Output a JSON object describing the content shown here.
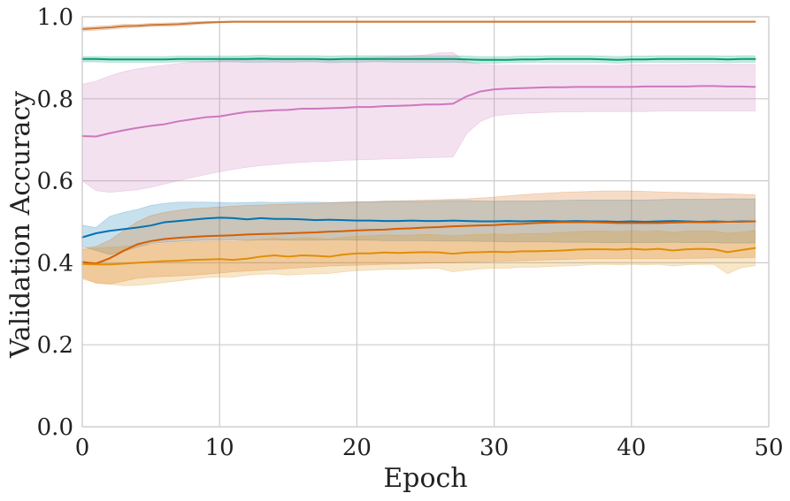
{
  "chart_data": {
    "type": "line",
    "xlabel": "Epoch",
    "ylabel": "Validation Accuracy",
    "xlim": [
      0,
      50
    ],
    "ylim": [
      0,
      1.0
    ],
    "xticks": [
      0,
      10,
      20,
      30,
      40,
      50
    ],
    "xtick_labels": [
      "0",
      "10",
      "20",
      "30",
      "40",
      "50"
    ],
    "yticks": [
      0,
      0.2,
      0.4,
      0.6,
      0.8,
      1.0
    ],
    "ytick_labels": [
      "0.0",
      "0.2",
      "0.4",
      "0.6",
      "0.8",
      "1.0"
    ],
    "grid": true,
    "x": [
      0,
      1,
      2,
      3,
      4,
      5,
      6,
      7,
      8,
      9,
      10,
      11,
      12,
      13,
      14,
      15,
      16,
      17,
      18,
      19,
      20,
      21,
      22,
      23,
      24,
      25,
      26,
      27,
      28,
      29,
      30,
      31,
      32,
      33,
      34,
      35,
      36,
      37,
      38,
      39,
      40,
      41,
      42,
      43,
      44,
      45,
      46,
      47,
      48,
      49
    ],
    "series": [
      {
        "color": "#cc7a3a",
        "values": [
          0.97,
          0.972,
          0.974,
          0.977,
          0.978,
          0.98,
          0.981,
          0.982,
          0.984,
          0.986,
          0.987,
          0.988,
          0.988,
          0.988,
          0.988,
          0.988,
          0.988,
          0.988,
          0.988,
          0.988,
          0.988,
          0.988,
          0.988,
          0.988,
          0.988,
          0.988,
          0.988,
          0.988,
          0.988,
          0.988,
          0.988,
          0.988,
          0.988,
          0.988,
          0.988,
          0.988,
          0.988,
          0.988,
          0.988,
          0.988,
          0.988,
          0.988,
          0.988,
          0.988,
          0.988,
          0.988,
          0.988,
          0.988,
          0.988,
          0.988
        ],
        "lower": [
          0.965,
          0.967,
          0.969,
          0.972,
          0.974,
          0.976,
          0.977,
          0.978,
          0.98,
          0.983,
          0.985,
          0.986,
          0.986,
          0.986,
          0.986,
          0.986,
          0.986,
          0.986,
          0.986,
          0.986,
          0.986,
          0.986,
          0.986,
          0.986,
          0.986,
          0.986,
          0.986,
          0.986,
          0.986,
          0.986,
          0.986,
          0.986,
          0.986,
          0.986,
          0.986,
          0.986,
          0.986,
          0.986,
          0.986,
          0.986,
          0.986,
          0.986,
          0.986,
          0.986,
          0.986,
          0.986,
          0.986,
          0.986,
          0.986,
          0.986
        ],
        "upper": [
          0.975,
          0.977,
          0.979,
          0.982,
          0.982,
          0.984,
          0.985,
          0.986,
          0.988,
          0.989,
          0.989,
          0.99,
          0.99,
          0.99,
          0.99,
          0.99,
          0.99,
          0.99,
          0.99,
          0.99,
          0.99,
          0.99,
          0.99,
          0.99,
          0.99,
          0.99,
          0.99,
          0.99,
          0.99,
          0.99,
          0.99,
          0.99,
          0.99,
          0.99,
          0.99,
          0.99,
          0.99,
          0.99,
          0.99,
          0.99,
          0.99,
          0.99,
          0.99,
          0.99,
          0.99,
          0.99,
          0.99,
          0.99,
          0.99,
          0.99
        ]
      },
      {
        "color": "#029e73",
        "values": [
          0.897,
          0.897,
          0.896,
          0.896,
          0.896,
          0.896,
          0.896,
          0.897,
          0.897,
          0.897,
          0.897,
          0.897,
          0.897,
          0.898,
          0.897,
          0.897,
          0.897,
          0.897,
          0.896,
          0.897,
          0.897,
          0.897,
          0.897,
          0.897,
          0.897,
          0.897,
          0.897,
          0.897,
          0.896,
          0.895,
          0.895,
          0.895,
          0.896,
          0.896,
          0.897,
          0.897,
          0.897,
          0.897,
          0.896,
          0.895,
          0.896,
          0.896,
          0.897,
          0.897,
          0.897,
          0.897,
          0.897,
          0.896,
          0.897,
          0.897
        ],
        "lower": [
          0.89,
          0.89,
          0.889,
          0.889,
          0.889,
          0.889,
          0.889,
          0.89,
          0.89,
          0.89,
          0.89,
          0.89,
          0.889,
          0.889,
          0.89,
          0.889,
          0.89,
          0.89,
          0.888,
          0.889,
          0.889,
          0.89,
          0.89,
          0.889,
          0.889,
          0.889,
          0.889,
          0.889,
          0.888,
          0.887,
          0.887,
          0.888,
          0.888,
          0.889,
          0.889,
          0.889,
          0.889,
          0.889,
          0.888,
          0.887,
          0.888,
          0.889,
          0.889,
          0.889,
          0.889,
          0.889,
          0.889,
          0.888,
          0.889,
          0.889
        ],
        "upper": [
          0.903,
          0.903,
          0.903,
          0.903,
          0.903,
          0.903,
          0.903,
          0.904,
          0.904,
          0.904,
          0.904,
          0.904,
          0.905,
          0.906,
          0.905,
          0.905,
          0.905,
          0.905,
          0.904,
          0.905,
          0.905,
          0.905,
          0.905,
          0.905,
          0.905,
          0.905,
          0.905,
          0.905,
          0.904,
          0.903,
          0.903,
          0.903,
          0.904,
          0.904,
          0.905,
          0.905,
          0.905,
          0.905,
          0.904,
          0.903,
          0.904,
          0.904,
          0.905,
          0.905,
          0.905,
          0.905,
          0.905,
          0.904,
          0.905,
          0.905
        ]
      },
      {
        "color": "#cc78bc",
        "values": [
          0.709,
          0.708,
          0.716,
          0.723,
          0.729,
          0.734,
          0.738,
          0.745,
          0.75,
          0.755,
          0.757,
          0.763,
          0.768,
          0.77,
          0.772,
          0.773,
          0.776,
          0.776,
          0.777,
          0.778,
          0.78,
          0.78,
          0.782,
          0.783,
          0.784,
          0.786,
          0.786,
          0.788,
          0.806,
          0.818,
          0.823,
          0.825,
          0.826,
          0.827,
          0.828,
          0.828,
          0.829,
          0.829,
          0.829,
          0.829,
          0.829,
          0.83,
          0.83,
          0.83,
          0.83,
          0.831,
          0.831,
          0.83,
          0.83,
          0.829
        ],
        "lower": [
          0.6,
          0.576,
          0.572,
          0.575,
          0.578,
          0.584,
          0.592,
          0.6,
          0.608,
          0.615,
          0.622,
          0.628,
          0.633,
          0.637,
          0.64,
          0.643,
          0.645,
          0.647,
          0.648,
          0.65,
          0.651,
          0.652,
          0.653,
          0.654,
          0.655,
          0.656,
          0.657,
          0.658,
          0.715,
          0.745,
          0.758,
          0.762,
          0.764,
          0.766,
          0.767,
          0.768,
          0.768,
          0.769,
          0.769,
          0.769,
          0.769,
          0.769,
          0.77,
          0.77,
          0.77,
          0.77,
          0.77,
          0.77,
          0.77,
          0.77
        ],
        "upper": [
          0.835,
          0.843,
          0.856,
          0.866,
          0.873,
          0.878,
          0.882,
          0.886,
          0.889,
          0.891,
          0.893,
          0.894,
          0.895,
          0.896,
          0.896,
          0.897,
          0.898,
          0.898,
          0.899,
          0.899,
          0.9,
          0.901,
          0.902,
          0.903,
          0.905,
          0.907,
          0.912,
          0.913,
          0.89,
          0.884,
          0.882,
          0.882,
          0.882,
          0.882,
          0.882,
          0.882,
          0.882,
          0.882,
          0.882,
          0.882,
          0.883,
          0.883,
          0.883,
          0.883,
          0.884,
          0.884,
          0.884,
          0.884,
          0.884,
          0.884
        ]
      },
      {
        "color": "#0173b2",
        "values": [
          0.462,
          0.472,
          0.478,
          0.482,
          0.486,
          0.491,
          0.499,
          0.502,
          0.505,
          0.508,
          0.51,
          0.509,
          0.506,
          0.509,
          0.507,
          0.507,
          0.506,
          0.504,
          0.505,
          0.504,
          0.503,
          0.503,
          0.502,
          0.502,
          0.503,
          0.502,
          0.502,
          0.503,
          0.502,
          0.501,
          0.501,
          0.502,
          0.501,
          0.502,
          0.502,
          0.501,
          0.502,
          0.501,
          0.501,
          0.5,
          0.501,
          0.5,
          0.501,
          0.502,
          0.501,
          0.5,
          0.501,
          0.5,
          0.501,
          0.501
        ],
        "lower": [
          0.44,
          0.43,
          0.42,
          0.428,
          0.438,
          0.447,
          0.45,
          0.452,
          0.454,
          0.455,
          0.456,
          0.456,
          0.455,
          0.456,
          0.456,
          0.455,
          0.455,
          0.455,
          0.456,
          0.456,
          0.455,
          0.455,
          0.454,
          0.454,
          0.454,
          0.454,
          0.453,
          0.453,
          0.453,
          0.452,
          0.452,
          0.451,
          0.451,
          0.451,
          0.451,
          0.45,
          0.45,
          0.45,
          0.449,
          0.449,
          0.449,
          0.449,
          0.449,
          0.45,
          0.449,
          0.449,
          0.449,
          0.448,
          0.448,
          0.448
        ],
        "upper": [
          0.492,
          0.486,
          0.513,
          0.523,
          0.53,
          0.54,
          0.545,
          0.548,
          0.548,
          0.548,
          0.547,
          0.546,
          0.547,
          0.548,
          0.547,
          0.548,
          0.548,
          0.548,
          0.547,
          0.548,
          0.549,
          0.549,
          0.55,
          0.55,
          0.55,
          0.55,
          0.551,
          0.552,
          0.552,
          0.551,
          0.55,
          0.551,
          0.551,
          0.551,
          0.552,
          0.552,
          0.553,
          0.553,
          0.553,
          0.553,
          0.553,
          0.553,
          0.554,
          0.555,
          0.555,
          0.555,
          0.555,
          0.556,
          0.556,
          0.556
        ]
      },
      {
        "color": "#d55e00",
        "values": [
          0.402,
          0.398,
          0.411,
          0.429,
          0.445,
          0.453,
          0.458,
          0.461,
          0.463,
          0.465,
          0.466,
          0.467,
          0.469,
          0.47,
          0.471,
          0.472,
          0.473,
          0.474,
          0.476,
          0.477,
          0.479,
          0.48,
          0.481,
          0.483,
          0.484,
          0.486,
          0.487,
          0.489,
          0.49,
          0.491,
          0.492,
          0.494,
          0.495,
          0.497,
          0.498,
          0.499,
          0.499,
          0.499,
          0.498,
          0.497,
          0.497,
          0.497,
          0.497,
          0.498,
          0.499,
          0.499,
          0.499,
          0.5,
          0.5,
          0.501
        ],
        "lower": [
          0.365,
          0.35,
          0.348,
          0.355,
          0.362,
          0.365,
          0.367,
          0.368,
          0.37,
          0.372,
          0.375,
          0.378,
          0.38,
          0.382,
          0.384,
          0.386,
          0.388,
          0.39,
          0.392,
          0.393,
          0.394,
          0.395,
          0.396,
          0.397,
          0.398,
          0.399,
          0.4,
          0.4,
          0.401,
          0.402,
          0.403,
          0.404,
          0.405,
          0.406,
          0.407,
          0.408,
          0.409,
          0.41,
          0.41,
          0.41,
          0.41,
          0.41,
          0.41,
          0.41,
          0.411,
          0.411,
          0.412,
          0.412,
          0.412,
          0.413
        ],
        "upper": [
          0.435,
          0.44,
          0.455,
          0.478,
          0.5,
          0.515,
          0.523,
          0.528,
          0.532,
          0.534,
          0.536,
          0.538,
          0.54,
          0.541,
          0.542,
          0.543,
          0.544,
          0.545,
          0.546,
          0.547,
          0.548,
          0.549,
          0.55,
          0.551,
          0.552,
          0.553,
          0.554,
          0.555,
          0.556,
          0.558,
          0.56,
          0.563,
          0.566,
          0.568,
          0.57,
          0.572,
          0.573,
          0.574,
          0.575,
          0.575,
          0.575,
          0.574,
          0.573,
          0.572,
          0.571,
          0.57,
          0.569,
          0.568,
          0.567,
          0.566
        ]
      },
      {
        "color": "#de8f05",
        "values": [
          0.397,
          0.396,
          0.396,
          0.398,
          0.4,
          0.402,
          0.404,
          0.405,
          0.407,
          0.408,
          0.409,
          0.407,
          0.41,
          0.415,
          0.418,
          0.415,
          0.418,
          0.417,
          0.415,
          0.42,
          0.423,
          0.423,
          0.425,
          0.424,
          0.425,
          0.426,
          0.425,
          0.422,
          0.425,
          0.426,
          0.427,
          0.426,
          0.428,
          0.428,
          0.429,
          0.43,
          0.432,
          0.433,
          0.433,
          0.432,
          0.434,
          0.432,
          0.434,
          0.43,
          0.433,
          0.434,
          0.433,
          0.426,
          0.431,
          0.436
        ],
        "lower": [
          0.36,
          0.352,
          0.348,
          0.344,
          0.345,
          0.348,
          0.352,
          0.356,
          0.36,
          0.364,
          0.365,
          0.365,
          0.37,
          0.372,
          0.373,
          0.37,
          0.372,
          0.373,
          0.374,
          0.378,
          0.381,
          0.382,
          0.384,
          0.384,
          0.385,
          0.386,
          0.386,
          0.378,
          0.382,
          0.385,
          0.387,
          0.387,
          0.389,
          0.389,
          0.391,
          0.392,
          0.393,
          0.395,
          0.396,
          0.395,
          0.396,
          0.395,
          0.396,
          0.392,
          0.395,
          0.396,
          0.396,
          0.373,
          0.388,
          0.393
        ],
        "upper": [
          0.432,
          0.436,
          0.438,
          0.44,
          0.442,
          0.444,
          0.447,
          0.449,
          0.451,
          0.452,
          0.453,
          0.452,
          0.454,
          0.457,
          0.46,
          0.458,
          0.461,
          0.46,
          0.458,
          0.462,
          0.465,
          0.466,
          0.468,
          0.467,
          0.468,
          0.469,
          0.468,
          0.466,
          0.468,
          0.469,
          0.47,
          0.469,
          0.471,
          0.471,
          0.472,
          0.474,
          0.476,
          0.477,
          0.477,
          0.476,
          0.478,
          0.476,
          0.478,
          0.474,
          0.477,
          0.478,
          0.477,
          0.472,
          0.475,
          0.479
        ]
      }
    ]
  }
}
